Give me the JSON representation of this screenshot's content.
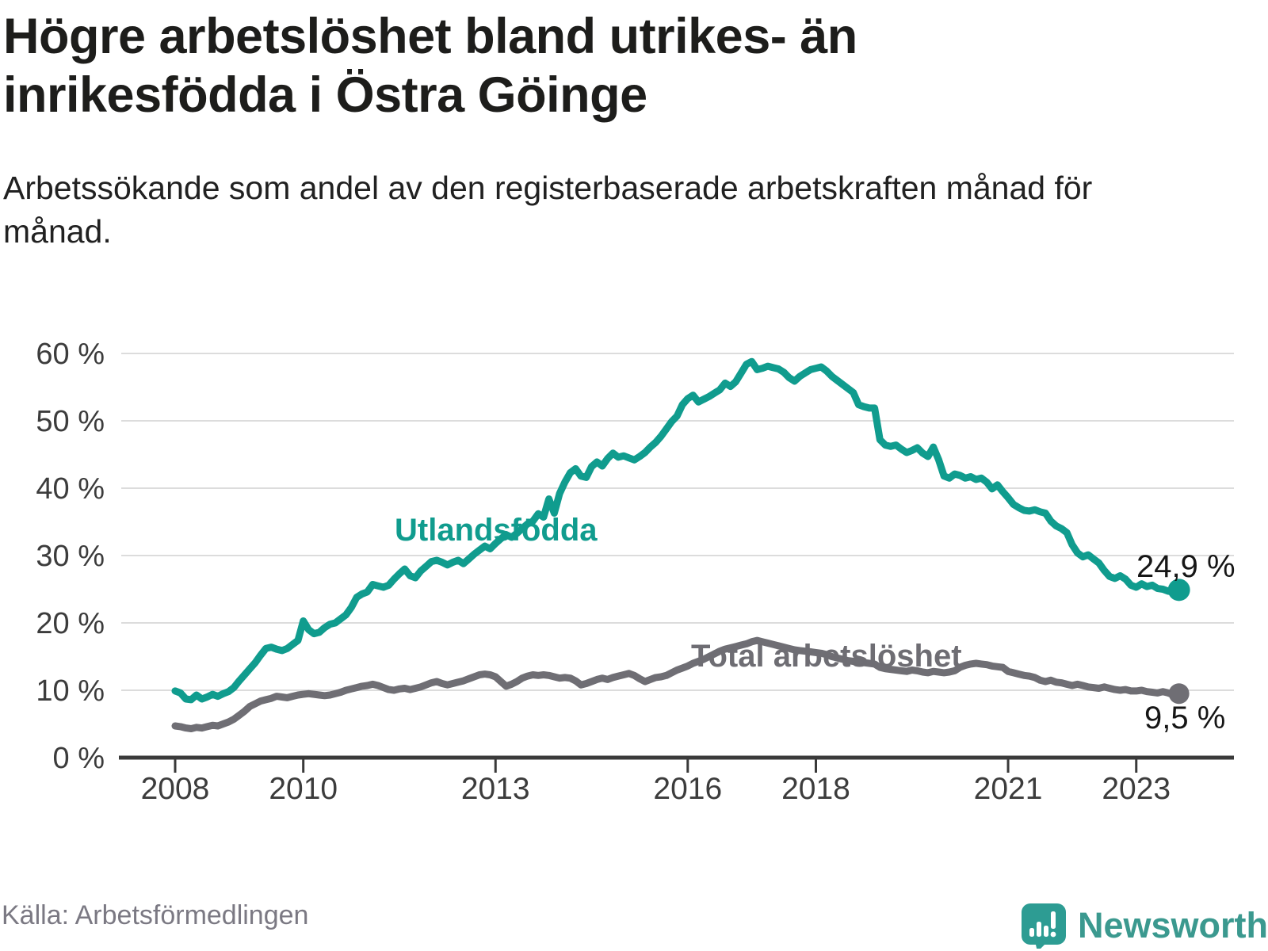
{
  "header": {
    "title": "Högre arbetslöshet bland utrikes- än inrikesfödda i Östra Göinge",
    "subtitle": "Arbetssökande som andel av den registerbaserade arbetskraften månad för månad."
  },
  "chart_data": {
    "type": "line",
    "unit": "%",
    "start_year": 2008,
    "points_per_year": 12,
    "end_month_label": "2023-09",
    "x_ticks": [
      2008,
      2010,
      2013,
      2016,
      2018,
      2021,
      2023
    ],
    "y_ticks": [
      0,
      10,
      20,
      30,
      40,
      50,
      60
    ],
    "y_tick_suffix": " %",
    "ylim": [
      0,
      60
    ],
    "grid": "horizontal",
    "legend_position": "inline-labels",
    "series": [
      {
        "name": "Utlandsfödda",
        "color": "#109c8e",
        "end_label": "24,9 %",
        "end_value": 24.9,
        "values": [
          9.9,
          9.6,
          8.7,
          8.6,
          9.3,
          8.7,
          9.0,
          9.4,
          9.1,
          9.5,
          9.8,
          10.4,
          11.4,
          12.3,
          13.2,
          14.1,
          15.2,
          16.2,
          16.4,
          16.1,
          15.9,
          16.2,
          16.8,
          17.4,
          20.3,
          19.0,
          18.4,
          18.6,
          19.3,
          19.8,
          20.0,
          20.6,
          21.2,
          22.3,
          23.8,
          24.3,
          24.6,
          25.7,
          25.5,
          25.3,
          25.6,
          26.5,
          27.3,
          28.0,
          27.0,
          26.7,
          27.7,
          28.4,
          29.1,
          29.3,
          29.0,
          28.6,
          29.0,
          29.3,
          28.8,
          29.5,
          30.2,
          30.8,
          31.4,
          31.0,
          31.8,
          32.5,
          33.1,
          32.7,
          33.3,
          34.0,
          34.7,
          35.1,
          36.2,
          35.7,
          38.4,
          36.3,
          39.2,
          40.9,
          42.3,
          42.9,
          41.8,
          41.6,
          43.2,
          43.9,
          43.3,
          44.4,
          45.2,
          44.6,
          44.8,
          44.5,
          44.2,
          44.7,
          45.3,
          46.1,
          46.8,
          47.7,
          48.8,
          49.9,
          50.7,
          52.4,
          53.3,
          53.8,
          52.8,
          53.2,
          53.6,
          54.1,
          54.6,
          55.6,
          55.1,
          55.8,
          57.1,
          58.4,
          58.8,
          57.6,
          57.8,
          58.1,
          57.9,
          57.7,
          57.2,
          56.4,
          55.9,
          56.6,
          57.1,
          57.6,
          57.8,
          58.0,
          57.4,
          56.6,
          56.0,
          55.4,
          54.8,
          54.2,
          52.4,
          52.1,
          51.9,
          51.9,
          47.2,
          46.4,
          46.2,
          46.4,
          45.8,
          45.3,
          45.6,
          46.0,
          45.2,
          44.7,
          46.1,
          44.2,
          41.8,
          41.5,
          42.1,
          41.9,
          41.5,
          41.7,
          41.3,
          41.5,
          40.9,
          39.9,
          40.5,
          39.5,
          38.6,
          37.6,
          37.1,
          36.7,
          36.6,
          36.8,
          36.5,
          36.3,
          35.1,
          34.4,
          34.0,
          33.4,
          31.6,
          30.4,
          29.8,
          30.1,
          29.5,
          28.9,
          27.8,
          26.9,
          26.6,
          27.0,
          26.5,
          25.6,
          25.3,
          25.8,
          25.4,
          25.6,
          25.1,
          25.0,
          24.7,
          24.6,
          24.9
        ]
      },
      {
        "name": "Total arbetslöshet",
        "color": "#6f6e74",
        "end_label": "9,5 %",
        "end_value": 9.5,
        "values": [
          4.7,
          4.6,
          4.4,
          4.3,
          4.5,
          4.4,
          4.6,
          4.8,
          4.7,
          5.0,
          5.3,
          5.7,
          6.3,
          6.9,
          7.6,
          8.0,
          8.4,
          8.6,
          8.8,
          9.1,
          9.0,
          8.9,
          9.1,
          9.3,
          9.4,
          9.5,
          9.4,
          9.3,
          9.2,
          9.3,
          9.5,
          9.7,
          10.0,
          10.2,
          10.4,
          10.6,
          10.7,
          10.9,
          10.7,
          10.4,
          10.1,
          10.0,
          10.2,
          10.3,
          10.1,
          10.3,
          10.5,
          10.8,
          11.1,
          11.3,
          11.0,
          10.8,
          11.0,
          11.2,
          11.4,
          11.7,
          12.0,
          12.3,
          12.4,
          12.3,
          12.0,
          11.3,
          10.6,
          10.9,
          11.3,
          11.8,
          12.1,
          12.3,
          12.2,
          12.3,
          12.2,
          12.0,
          11.8,
          11.9,
          11.8,
          11.4,
          10.8,
          11.0,
          11.3,
          11.6,
          11.8,
          11.6,
          11.9,
          12.1,
          12.3,
          12.5,
          12.2,
          11.7,
          11.3,
          11.6,
          11.9,
          12.0,
          12.2,
          12.6,
          13.0,
          13.3,
          13.6,
          14.0,
          14.3,
          14.6,
          15.0,
          15.4,
          15.8,
          16.1,
          16.3,
          16.5,
          16.7,
          16.9,
          17.2,
          17.4,
          17.2,
          17.0,
          16.8,
          16.6,
          16.4,
          16.2,
          16.0,
          15.9,
          15.8,
          15.7,
          15.6,
          15.5,
          15.3,
          15.0,
          14.8,
          14.6,
          14.4,
          14.3,
          14.2,
          14.1,
          14.0,
          13.9,
          13.4,
          13.2,
          13.1,
          13.0,
          12.9,
          12.8,
          13.0,
          12.9,
          12.7,
          12.6,
          12.8,
          12.7,
          12.6,
          12.7,
          12.9,
          13.4,
          13.7,
          13.9,
          14.0,
          13.9,
          13.8,
          13.6,
          13.5,
          13.4,
          12.8,
          12.6,
          12.4,
          12.2,
          12.1,
          11.9,
          11.5,
          11.3,
          11.5,
          11.2,
          11.1,
          10.9,
          10.7,
          10.9,
          10.7,
          10.5,
          10.4,
          10.3,
          10.5,
          10.3,
          10.1,
          10.0,
          10.1,
          9.9,
          9.9,
          10.0,
          9.8,
          9.7,
          9.6,
          9.8,
          9.6,
          9.3,
          9.5
        ]
      }
    ],
    "style": {
      "grid_color": "#dcdcdc",
      "axis_color": "#3a3a3a",
      "tick_label_color": "#3c3c3c"
    }
  },
  "footer": {
    "source": "Källa: Arbetsförmedlingen",
    "brand": "Newsworthy",
    "brand_color": "#3b998f",
    "brand_icon_color": "#2d9c93"
  }
}
